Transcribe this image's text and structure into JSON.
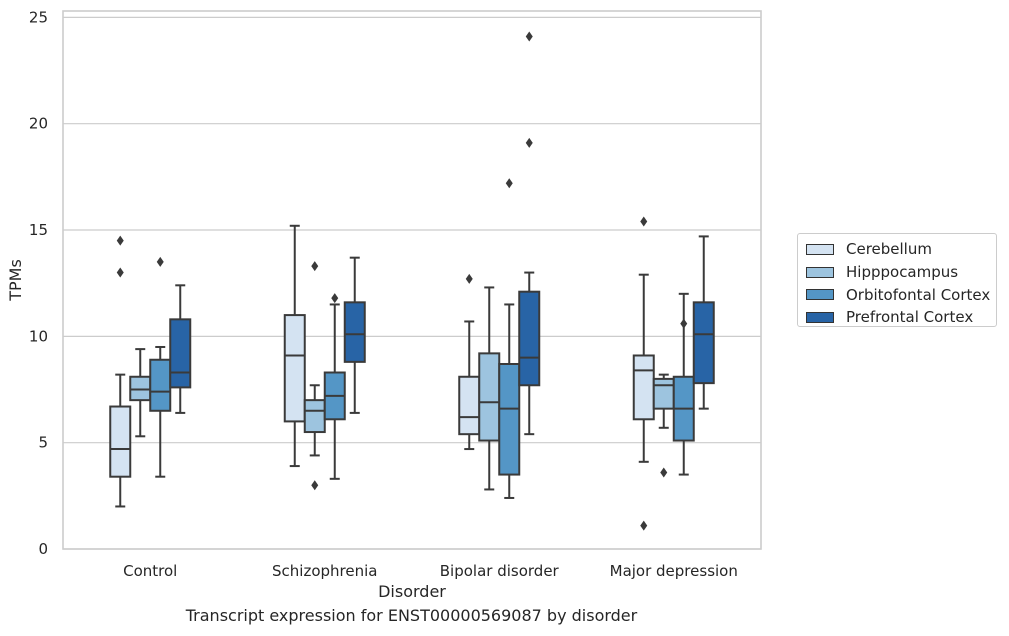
{
  "caption": "Transcript expression for ENST00000569087 by disorder",
  "chart_data": {
    "type": "boxplot",
    "xlabel": "Disorder",
    "ylabel": "TPMs",
    "ylim": [
      0,
      25.3
    ],
    "yticks": [
      0,
      5,
      10,
      15,
      20,
      25
    ],
    "grid": "horizontal",
    "legend_position": "right-outside",
    "categories": [
      "Control",
      "Schizophrenia",
      "Bipolar disorder",
      "Major depression"
    ],
    "series": [
      {
        "name": "Cerebellum",
        "color": "#d4e3f2",
        "boxes": [
          {
            "low": 2.0,
            "q1": 3.4,
            "median": 4.7,
            "q3": 6.7,
            "high": 8.2,
            "outliers": [
              13.0,
              14.5
            ]
          },
          {
            "low": 3.9,
            "q1": 6.0,
            "median": 9.1,
            "q3": 11.0,
            "high": 15.2,
            "outliers": []
          },
          {
            "low": 4.7,
            "q1": 5.4,
            "median": 6.2,
            "q3": 8.1,
            "high": 10.7,
            "outliers": [
              12.7
            ]
          },
          {
            "low": 4.1,
            "q1": 6.1,
            "median": 8.4,
            "q3": 9.1,
            "high": 12.9,
            "outliers": [
              1.1,
              15.4
            ]
          }
        ]
      },
      {
        "name": "Hipppocampus",
        "color": "#9dc4df",
        "boxes": [
          {
            "low": 5.3,
            "q1": 7.0,
            "median": 7.5,
            "q3": 8.1,
            "high": 9.4,
            "outliers": []
          },
          {
            "low": 4.4,
            "q1": 5.5,
            "median": 6.5,
            "q3": 7.0,
            "high": 7.7,
            "outliers": [
              3.0,
              13.3
            ]
          },
          {
            "low": 2.8,
            "q1": 5.1,
            "median": 6.9,
            "q3": 9.2,
            "high": 12.3,
            "outliers": []
          },
          {
            "low": 5.7,
            "q1": 6.6,
            "median": 7.7,
            "q3": 8.0,
            "high": 8.2,
            "outliers": [
              3.6
            ]
          }
        ]
      },
      {
        "name": "Orbitofontal Cortex",
        "color": "#5496c6",
        "boxes": [
          {
            "low": 3.4,
            "q1": 6.5,
            "median": 7.4,
            "q3": 8.9,
            "high": 9.5,
            "outliers": [
              13.5
            ]
          },
          {
            "low": 3.3,
            "q1": 6.1,
            "median": 7.2,
            "q3": 8.3,
            "high": 11.5,
            "outliers": [
              11.8
            ]
          },
          {
            "low": 2.4,
            "q1": 3.5,
            "median": 6.6,
            "q3": 8.7,
            "high": 11.5,
            "outliers": [
              17.2
            ]
          },
          {
            "low": 3.5,
            "q1": 5.1,
            "median": 6.6,
            "q3": 8.1,
            "high": 12.0,
            "outliers": [
              10.6
            ]
          }
        ]
      },
      {
        "name": "Prefrontal Cortex",
        "color": "#2864a6",
        "boxes": [
          {
            "low": 6.4,
            "q1": 7.6,
            "median": 8.3,
            "q3": 10.8,
            "high": 12.4,
            "outliers": []
          },
          {
            "low": 6.4,
            "q1": 8.8,
            "median": 10.1,
            "q3": 11.6,
            "high": 13.7,
            "outliers": []
          },
          {
            "low": 5.4,
            "q1": 7.7,
            "median": 9.0,
            "q3": 12.1,
            "high": 13.0,
            "outliers": [
              19.1,
              24.1
            ]
          },
          {
            "low": 6.6,
            "q1": 7.8,
            "median": 10.1,
            "q3": 11.6,
            "high": 14.7,
            "outliers": []
          }
        ]
      }
    ]
  }
}
